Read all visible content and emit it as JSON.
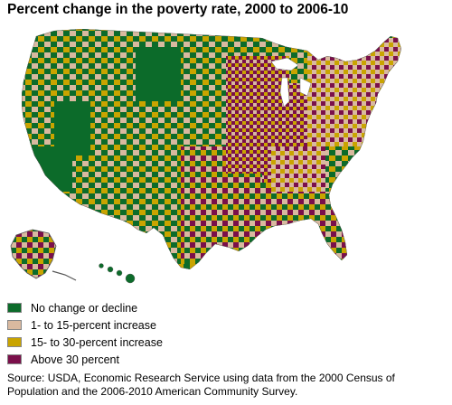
{
  "title": "Percent change in the poverty rate, 2000 to 2006-10",
  "legend": [
    {
      "label": "No change or decline",
      "color": "#0c6b2a"
    },
    {
      "label": "1- to 15-percent increase",
      "color": "#d9b99f"
    },
    {
      "label": "15- to 30-percent increase",
      "color": "#c9a400"
    },
    {
      "label": "Above 30 percent",
      "color": "#7a0f4a"
    }
  ],
  "source": "Source: USDA, Economic Research Service using data from the 2000 Census of Population and the 2006-2010 American Community Survey.",
  "map": {
    "subject": "United States counties",
    "regions": [
      "contiguous-us",
      "alaska",
      "hawaii"
    ]
  }
}
